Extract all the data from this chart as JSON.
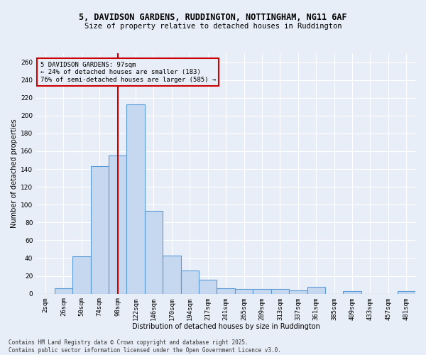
{
  "title_line1": "5, DAVIDSON GARDENS, RUDDINGTON, NOTTINGHAM, NG11 6AF",
  "title_line2": "Size of property relative to detached houses in Ruddington",
  "xlabel": "Distribution of detached houses by size in Ruddington",
  "ylabel": "Number of detached properties",
  "footnote": "Contains HM Land Registry data © Crown copyright and database right 2025.\nContains public sector information licensed under the Open Government Licence v3.0.",
  "bar_color": "#c5d8f0",
  "bar_edge_color": "#5b9bd5",
  "background_color": "#e8eef7",
  "categories": [
    "2sqm",
    "26sqm",
    "50sqm",
    "74sqm",
    "98sqm",
    "122sqm",
    "146sqm",
    "170sqm",
    "194sqm",
    "217sqm",
    "241sqm",
    "265sqm",
    "289sqm",
    "313sqm",
    "337sqm",
    "361sqm",
    "385sqm",
    "409sqm",
    "433sqm",
    "457sqm",
    "481sqm"
  ],
  "values": [
    0,
    6,
    42,
    143,
    155,
    213,
    93,
    43,
    26,
    16,
    6,
    5,
    5,
    5,
    4,
    8,
    0,
    3,
    0,
    0,
    3
  ],
  "vline_x": 4.0,
  "vline_color": "#cc0000",
  "annotation_text": "5 DAVIDSON GARDENS: 97sqm\n← 24% of detached houses are smaller (183)\n76% of semi-detached houses are larger (585) →",
  "annotation_box_color": "#cc0000",
  "ylim": [
    0,
    270
  ],
  "yticks": [
    0,
    20,
    40,
    60,
    80,
    100,
    120,
    140,
    160,
    180,
    200,
    220,
    240,
    260
  ],
  "grid_color": "#ffffff",
  "title_fontsize": 8.5,
  "subtitle_fontsize": 7.5,
  "axis_label_fontsize": 7,
  "tick_fontsize": 6.5,
  "annotation_fontsize": 6.5,
  "footnote_fontsize": 5.5
}
